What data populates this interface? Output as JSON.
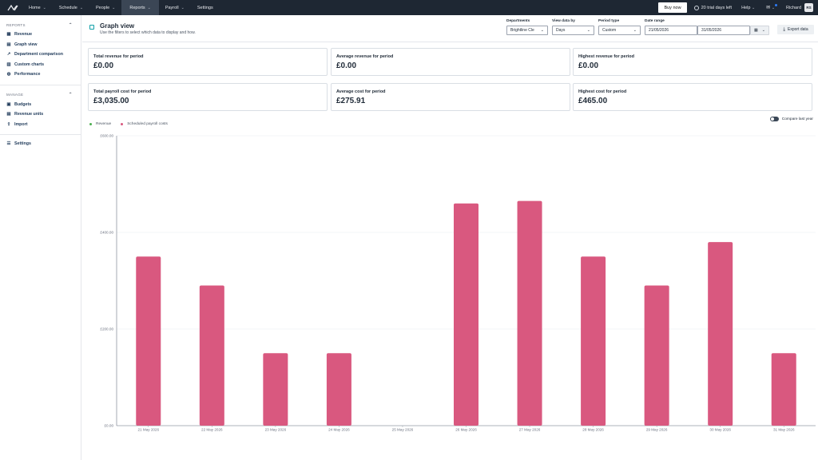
{
  "nav": {
    "items": [
      {
        "label": "Home",
        "chevron": true
      },
      {
        "label": "Schedule",
        "chevron": true
      },
      {
        "label": "People",
        "chevron": true
      },
      {
        "label": "Reports",
        "chevron": true,
        "active": true
      },
      {
        "label": "Payroll",
        "chevron": true
      },
      {
        "label": "Settings",
        "chevron": false
      }
    ],
    "buy_now": "Buy now",
    "trial": "20 trial days left",
    "help": "Help",
    "user": "Richard",
    "avatar_initials": "RS"
  },
  "sidebar": {
    "reports_heading": "REPORTS",
    "reports_items": [
      {
        "label": "Revenue",
        "icon": "grid-icon"
      },
      {
        "label": "Graph view",
        "icon": "graph-icon"
      },
      {
        "label": "Department comparison",
        "icon": "trend-icon"
      },
      {
        "label": "Custom charts",
        "icon": "chart-icon"
      },
      {
        "label": "Performance",
        "icon": "globe-icon"
      }
    ],
    "manage_heading": "MANAGE",
    "manage_items": [
      {
        "label": "Budgets",
        "icon": "budget-icon"
      },
      {
        "label": "Revenue units",
        "icon": "units-icon"
      },
      {
        "label": "Import",
        "icon": "import-icon"
      }
    ],
    "settings_label": "Settings"
  },
  "header": {
    "title": "Graph view",
    "subtitle": "Use the filters to select which data to display and how."
  },
  "filters": {
    "departments_label": "Departments",
    "departments_value": "Brightline Cle",
    "view_label": "View data by",
    "view_value": "Days",
    "period_label": "Period type",
    "period_value": "Custom",
    "date_label": "Date range",
    "date_from": "21/05/2026",
    "date_to": "31/05/2026",
    "export_label": "Export data"
  },
  "cards": [
    {
      "label": "Total revenue for period",
      "value": "£0.00"
    },
    {
      "label": "Average revenue for period",
      "value": "£0.00"
    },
    {
      "label": "Highest revenue for period",
      "value": "£0.00"
    },
    {
      "label": "Total payroll cost for period",
      "value": "£3,035.00"
    },
    {
      "label": "Average cost for period",
      "value": "£275.91"
    },
    {
      "label": "Highest cost for period",
      "value": "£465.00"
    }
  ],
  "legend": {
    "revenue": "Revenue",
    "payroll": "Scheduled payroll costs",
    "compare": "Compare last year"
  },
  "colors": {
    "revenue": "#4caf50",
    "payroll": "#d9587f",
    "nav_bg": "#1e2733"
  },
  "chart_data": {
    "type": "bar",
    "categories": [
      "21 May 2026",
      "22 May 2026",
      "23 May 2026",
      "24 May 2026",
      "25 May 2026",
      "26 May 2026",
      "27 May 2026",
      "28 May 2026",
      "29 May 2026",
      "30 May 2026",
      "31 May 2026"
    ],
    "series": [
      {
        "name": "Revenue",
        "values": [
          0,
          0,
          0,
          0,
          0,
          0,
          0,
          0,
          0,
          0,
          0
        ]
      },
      {
        "name": "Scheduled payroll costs",
        "values": [
          350,
          290,
          150,
          150,
          0,
          460,
          465,
          350,
          290,
          380,
          150
        ]
      }
    ],
    "ylim": [
      0,
      600
    ],
    "yticks": [
      "£0.00",
      "£200.00",
      "£400.00",
      "£600.00"
    ],
    "ytick_values": [
      0,
      200,
      400,
      600
    ],
    "grid": true,
    "legend_position": "top-left"
  }
}
